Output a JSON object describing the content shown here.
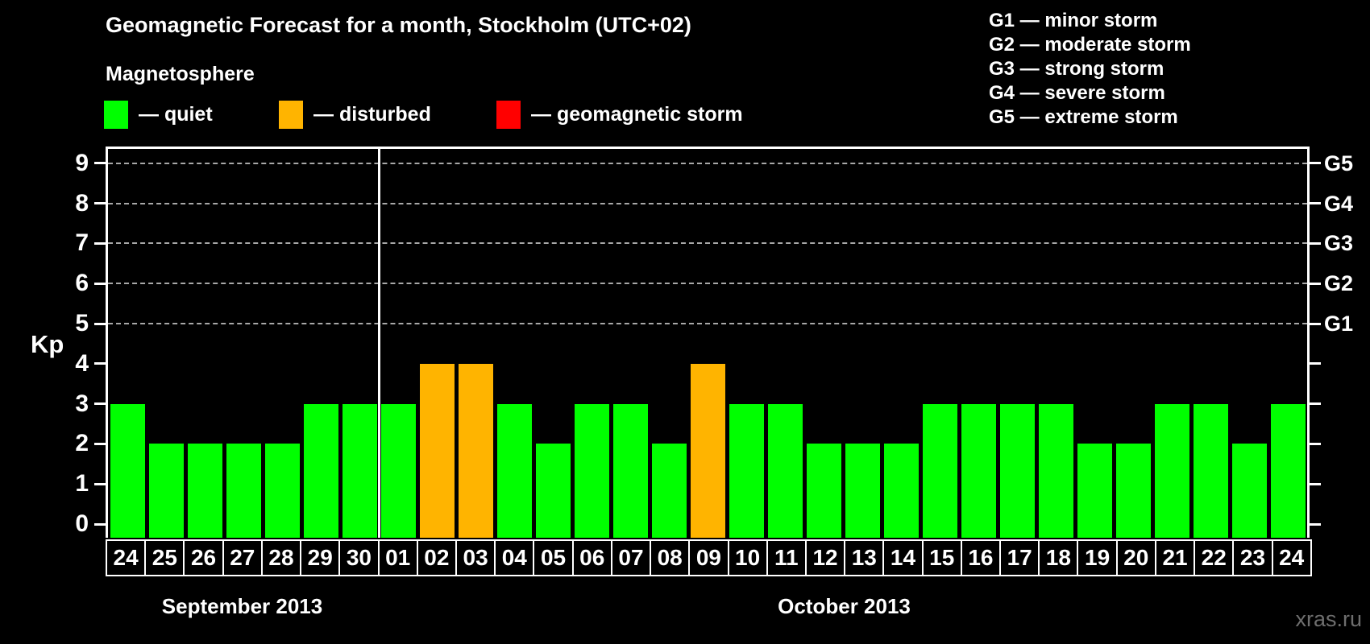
{
  "title": "Geomagnetic Forecast for a month, Stockholm (UTC+02)",
  "subtitle": "Magnetosphere",
  "legend": {
    "items": [
      {
        "label": "— quiet",
        "status": "quiet",
        "color": "#00FF00"
      },
      {
        "label": "— disturbed",
        "status": "disturbed",
        "color": "#FFB400"
      },
      {
        "label": "— geomagnetic storm",
        "status": "storm",
        "color": "#FF0000"
      }
    ]
  },
  "storm_scale_legend": [
    "G1 — minor storm",
    "G2 — moderate storm",
    "G3 — strong storm",
    "G4 — severe storm",
    "G5 — extreme storm"
  ],
  "watermark": "xras.ru",
  "chart_data": {
    "type": "bar",
    "title": "Geomagnetic Forecast for a month, Stockholm (UTC+02)",
    "ylabel": "Kp",
    "ylim": [
      -0.35,
      9.4
    ],
    "y_ticks": [
      0,
      1,
      2,
      3,
      4,
      5,
      6,
      7,
      8,
      9
    ],
    "gridlines_at_kp": [
      5,
      6,
      7,
      8,
      9
    ],
    "right_axis_labels": [
      {
        "kp": 5,
        "label": "G1"
      },
      {
        "kp": 6,
        "label": "G2"
      },
      {
        "kp": 7,
        "label": "G3"
      },
      {
        "kp": 8,
        "label": "G4"
      },
      {
        "kp": 9,
        "label": "G5"
      }
    ],
    "categories": [
      "24",
      "25",
      "26",
      "27",
      "28",
      "29",
      "30",
      "01",
      "02",
      "03",
      "04",
      "05",
      "06",
      "07",
      "08",
      "09",
      "10",
      "11",
      "12",
      "13",
      "14",
      "15",
      "16",
      "17",
      "18",
      "19",
      "20",
      "21",
      "22",
      "23",
      "24"
    ],
    "values": [
      3,
      2,
      2,
      2,
      2,
      3,
      3,
      3,
      4,
      4,
      3,
      2,
      3,
      3,
      2,
      4,
      3,
      3,
      2,
      2,
      2,
      3,
      3,
      3,
      3,
      2,
      2,
      3,
      3,
      2,
      3
    ],
    "statuses": [
      "quiet",
      "quiet",
      "quiet",
      "quiet",
      "quiet",
      "quiet",
      "quiet",
      "quiet",
      "disturbed",
      "disturbed",
      "quiet",
      "quiet",
      "quiet",
      "quiet",
      "quiet",
      "disturbed",
      "quiet",
      "quiet",
      "quiet",
      "quiet",
      "quiet",
      "quiet",
      "quiet",
      "quiet",
      "quiet",
      "quiet",
      "quiet",
      "quiet",
      "quiet",
      "quiet",
      "quiet"
    ],
    "status_colors": {
      "quiet": "#00FF00",
      "disturbed": "#FFB400",
      "storm": "#FF0000"
    },
    "month_sections": [
      {
        "label": "September 2013",
        "days": 7
      },
      {
        "label": "October 2013",
        "days": 24
      }
    ],
    "grid": "dashed gray at G-levels only",
    "legend_position": "top"
  }
}
